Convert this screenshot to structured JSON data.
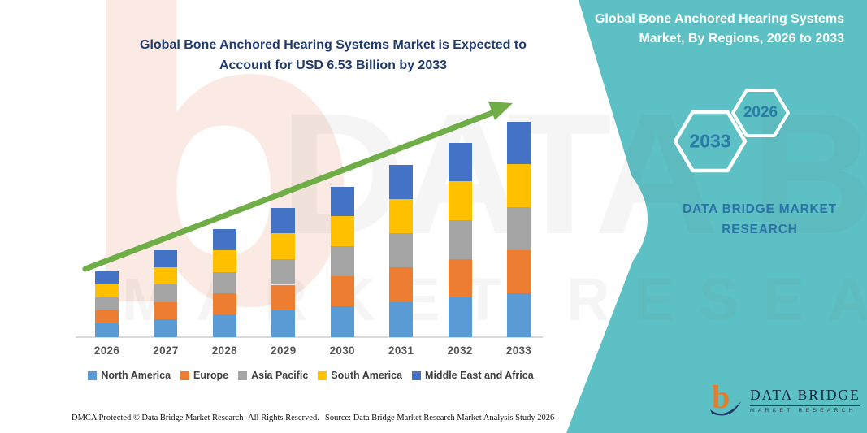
{
  "left_panel": {
    "title_line1": "Global Bone Anchored Hearing Systems Market is Expected to",
    "title_line2": "Account for USD 6.53 Billion by 2033",
    "footer_left": "DMCA Protected © Data Bridge Market Research-  All Rights Reserved.",
    "footer_source": "Source: Data Bridge Market Research  Market Analysis Study 2026"
  },
  "right_panel": {
    "title": "Global Bone Anchored Hearing Systems Market, By Regions, 2026 to 2033",
    "hexagon_large_label": "2033",
    "hexagon_small_label": "2026",
    "brand_text": "DATA BRIDGE MARKET RESEARCH",
    "logo_name": "DATA BRIDGE",
    "logo_sub": "MARKET RESEARCH",
    "colors": {
      "teal_background": "#5cc0c4",
      "hexagon_stroke": "#ffffff",
      "hexagon_text": "#2b7aa6",
      "brand_blue": "#2a72a8"
    }
  },
  "watermarks": {
    "big_letter": "b",
    "line1": "DATA BRIDGE",
    "line2": "MARKET RESEARCH"
  },
  "chart_data": {
    "type": "bar",
    "stacked": true,
    "title": "Global Bone Anchored Hearing Systems Market is Expected to Account for USD 6.53 Billion by 2033",
    "unit": "USD Billion",
    "categories": [
      "2026",
      "2027",
      "2028",
      "2029",
      "2030",
      "2031",
      "2032",
      "2033"
    ],
    "series": [
      {
        "name": "North America",
        "color": "#5B9BD5",
        "values": [
          0.42,
          0.55,
          0.68,
          0.81,
          0.94,
          1.07,
          1.2,
          1.34
        ]
      },
      {
        "name": "Europe",
        "color": "#ED7D31",
        "values": [
          0.39,
          0.52,
          0.65,
          0.78,
          0.91,
          1.04,
          1.17,
          1.3
        ]
      },
      {
        "name": "Asia Pacific",
        "color": "#A5A5A5",
        "values": [
          0.4,
          0.53,
          0.65,
          0.78,
          0.91,
          1.04,
          1.17,
          1.3
        ]
      },
      {
        "name": "South America",
        "color": "#FFC000",
        "values": [
          0.4,
          0.52,
          0.65,
          0.78,
          0.91,
          1.04,
          1.18,
          1.3
        ]
      },
      {
        "name": "Middle East and Africa",
        "color": "#4472C4",
        "values": [
          0.38,
          0.51,
          0.64,
          0.77,
          0.9,
          1.03,
          1.16,
          1.29
        ]
      }
    ],
    "totals": [
      1.99,
      2.63,
      3.27,
      3.92,
      4.57,
      5.22,
      5.88,
      6.53
    ],
    "ylim": [
      0,
      7
    ],
    "xlabel": "",
    "ylabel": "",
    "legend_position": "bottom",
    "axes": {
      "x_visible": true,
      "y_visible": false,
      "gridlines": false
    },
    "trend_arrow": {
      "color": "#6fad47",
      "direction": "up-right"
    }
  }
}
